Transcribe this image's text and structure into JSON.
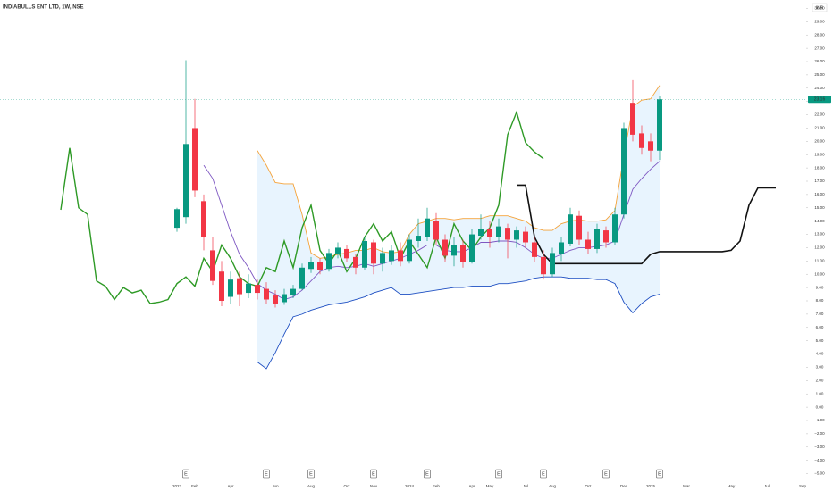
{
  "chart_data": {
    "type": "candlestick",
    "title": "INDIABULLS ENT LTD, 1W, NSE",
    "currency": "INR",
    "ylim": [
      -5.5,
      30.5
    ],
    "yticks": [
      {
        "value": 30,
        "label": "30.00"
      },
      {
        "value": 29,
        "label": "29.00"
      },
      {
        "value": 28,
        "label": "28.00"
      },
      {
        "value": 27,
        "label": "27.00"
      },
      {
        "value": 26,
        "label": "26.00"
      },
      {
        "value": 25,
        "label": "25.00"
      },
      {
        "value": 24,
        "label": "24.00"
      },
      {
        "value": 23,
        "label": "23.00"
      },
      {
        "value": 22,
        "label": "22.00"
      },
      {
        "value": 21,
        "label": "21.00"
      },
      {
        "value": 20,
        "label": "20.00"
      },
      {
        "value": 19,
        "label": "19.00"
      },
      {
        "value": 18,
        "label": "18.00"
      },
      {
        "value": 17,
        "label": "17.00"
      },
      {
        "value": 16,
        "label": "16.00"
      },
      {
        "value": 15,
        "label": "15.00"
      },
      {
        "value": 14,
        "label": "14.00"
      },
      {
        "value": 13,
        "label": "13.00"
      },
      {
        "value": 12,
        "label": "12.00"
      },
      {
        "value": 11,
        "label": "11.00"
      },
      {
        "value": 10,
        "label": "10.00"
      },
      {
        "value": 9,
        "label": "9.00"
      },
      {
        "value": 8,
        "label": "8.00"
      },
      {
        "value": 7,
        "label": "7.00"
      },
      {
        "value": 6,
        "label": "6.00"
      },
      {
        "value": 5,
        "label": "5.00"
      },
      {
        "value": 4,
        "label": "4.00"
      },
      {
        "value": 3,
        "label": "3.00"
      },
      {
        "value": 2,
        "label": "2.00"
      },
      {
        "value": 1,
        "label": "1.00"
      },
      {
        "value": 0,
        "label": "0.00"
      },
      {
        "value": -1,
        "label": "−1.00"
      },
      {
        "value": -2,
        "label": "−2.00"
      },
      {
        "value": -3,
        "label": "−3.00"
      },
      {
        "value": -4,
        "label": "−4.00"
      },
      {
        "value": -5,
        "label": "−5.00"
      }
    ],
    "categories": [
      null,
      null,
      null,
      null,
      null,
      null,
      null,
      null,
      null,
      null,
      null,
      null,
      null,
      "2023",
      null,
      "Feb",
      null,
      null,
      null,
      "Apr",
      null,
      null,
      null,
      null,
      "Jun",
      null,
      null,
      null,
      "Aug",
      null,
      null,
      null,
      "Oct",
      null,
      null,
      "Nov",
      null,
      null,
      null,
      "2024",
      null,
      null,
      "Feb",
      null,
      null,
      null,
      "Apr",
      null,
      "May",
      null,
      null,
      null,
      "Jul",
      null,
      null,
      "Aug",
      null,
      null,
      null,
      "Oct",
      null,
      null,
      null,
      "Dec",
      null,
      null,
      "2025",
      null,
      null,
      null,
      "Mar",
      null,
      null,
      null,
      null,
      "May",
      null,
      null,
      null,
      "Jul",
      null,
      null,
      null,
      "Sep"
    ],
    "earnings": [
      null,
      null,
      null,
      null,
      null,
      null,
      null,
      null,
      null,
      null,
      null,
      null,
      null,
      null,
      "E",
      null,
      null,
      null,
      null,
      null,
      null,
      null,
      null,
      "E",
      null,
      null,
      null,
      null,
      "E",
      null,
      null,
      null,
      null,
      null,
      null,
      "E",
      null,
      null,
      null,
      null,
      null,
      "E",
      null,
      null,
      null,
      null,
      null,
      null,
      null,
      "E",
      null,
      null,
      null,
      null,
      "E",
      null,
      null,
      null,
      null,
      null,
      null,
      "E",
      null,
      null,
      null,
      null,
      null,
      "E",
      null,
      null,
      null,
      null,
      null,
      null,
      null,
      null,
      null,
      null,
      null,
      null,
      null,
      null,
      null,
      null
    ],
    "candles": {
      "up_color": "#089981",
      "down_color": "#f23645",
      "open": [
        null,
        null,
        null,
        null,
        null,
        null,
        null,
        null,
        null,
        null,
        null,
        null,
        null,
        13.5,
        14.3,
        21.0,
        15.5,
        11.8,
        10.2,
        8.3,
        9.7,
        8.6,
        9.2,
        8.9,
        8.4,
        7.9,
        8.4,
        8.9,
        10.4,
        10.9,
        10.4,
        11.5,
        11.9,
        11.3,
        10.5,
        12.4,
        10.8,
        11.0,
        11.8,
        11.0,
        12.5,
        12.8,
        14.0,
        12.6,
        11.4,
        12.2,
        10.9,
        12.9,
        13.4,
        12.8,
        13.5,
        12.6,
        13.2,
        12.4,
        11.3,
        10.0,
        11.5,
        12.3,
        14.4,
        12.6,
        11.9,
        13.3,
        12.4,
        14.5,
        22.9,
        20.6,
        20.0,
        19.3,
        null,
        null,
        null,
        null,
        null,
        null,
        null,
        null,
        null,
        null,
        null,
        null,
        null,
        null,
        null,
        null
      ],
      "high": [
        null,
        null,
        null,
        null,
        null,
        null,
        null,
        null,
        null,
        null,
        null,
        null,
        null,
        15.0,
        26.1,
        23.2,
        16.0,
        12.8,
        11.0,
        10.2,
        10.2,
        10.0,
        9.6,
        9.4,
        8.8,
        8.9,
        9.2,
        10.8,
        11.3,
        11.2,
        11.9,
        12.4,
        12.2,
        11.5,
        12.8,
        12.6,
        12.0,
        12.2,
        12.4,
        13.0,
        14.2,
        15.0,
        14.6,
        13.0,
        12.8,
        12.6,
        13.4,
        14.5,
        14.0,
        14.2,
        13.8,
        13.6,
        13.6,
        12.8,
        11.8,
        12.0,
        12.8,
        15.0,
        14.8,
        13.2,
        13.8,
        13.6,
        15.0,
        21.4,
        24.6,
        21.2,
        20.6,
        23.4,
        null,
        null,
        null,
        null,
        null,
        null,
        null,
        null,
        null,
        null,
        null,
        null,
        null,
        null,
        null,
        null
      ],
      "low": [
        null,
        null,
        null,
        null,
        null,
        null,
        null,
        null,
        null,
        null,
        null,
        null,
        null,
        13.2,
        13.8,
        15.8,
        11.8,
        9.2,
        7.6,
        7.8,
        7.6,
        8.2,
        8.1,
        7.8,
        7.5,
        7.7,
        8.2,
        8.8,
        10.1,
        10.0,
        10.2,
        11.2,
        10.9,
        10.0,
        10.3,
        10.0,
        10.2,
        10.7,
        10.6,
        10.8,
        12.0,
        12.5,
        12.2,
        10.9,
        10.6,
        10.5,
        10.8,
        12.6,
        12.0,
        12.4,
        11.2,
        12.0,
        12.0,
        10.9,
        9.6,
        9.8,
        11.0,
        12.1,
        12.2,
        11.5,
        11.6,
        12.0,
        12.2,
        14.2,
        20.0,
        19.0,
        18.5,
        18.6,
        null,
        null,
        null,
        null,
        null,
        null,
        null,
        null,
        null,
        null,
        null,
        null,
        null,
        null,
        null,
        null
      ],
      "close": [
        null,
        null,
        null,
        null,
        null,
        null,
        null,
        null,
        null,
        null,
        null,
        null,
        null,
        14.9,
        19.8,
        16.3,
        12.8,
        9.5,
        8.0,
        9.6,
        8.5,
        9.3,
        8.6,
        8.1,
        7.8,
        8.5,
        8.9,
        10.5,
        10.9,
        10.3,
        11.6,
        12.0,
        11.2,
        10.5,
        12.5,
        10.8,
        11.6,
        11.8,
        11.0,
        12.6,
        12.9,
        14.2,
        12.6,
        11.4,
        12.2,
        10.9,
        13.0,
        13.4,
        12.8,
        13.6,
        12.6,
        13.3,
        12.4,
        11.3,
        10.0,
        11.6,
        12.4,
        14.5,
        12.6,
        11.9,
        13.4,
        12.4,
        14.5,
        21.0,
        20.5,
        19.5,
        19.3,
        23.16,
        null,
        null,
        null,
        null,
        null,
        null,
        null,
        null,
        null,
        null,
        null,
        null,
        null,
        null,
        null,
        null
      ]
    },
    "band_fill": "rgba(33,150,243,0.10)",
    "lines": [
      {
        "color": "#f5a33a",
        "values": [
          null,
          null,
          null,
          null,
          null,
          null,
          null,
          null,
          null,
          null,
          null,
          null,
          null,
          null,
          null,
          null,
          null,
          null,
          null,
          null,
          null,
          null,
          19.3,
          18.2,
          16.9,
          16.8,
          16.8,
          14.5,
          11.6,
          11.2,
          11.3,
          11.5,
          11.6,
          11.8,
          11.8,
          12.0,
          11.7,
          11.6,
          11.7,
          13.0,
          13.8,
          14.0,
          14.2,
          14.2,
          14.1,
          14.2,
          14.2,
          14.2,
          14.4,
          14.4,
          14.4,
          14.2,
          14.0,
          13.5,
          13.3,
          13.3,
          13.8,
          14.0,
          14.1,
          14.0,
          14.0,
          14.1,
          14.8,
          18.9,
          22.6,
          23.1,
          23.2,
          24.2,
          null,
          null,
          null,
          null,
          null,
          null,
          null,
          null,
          null,
          null,
          null,
          null,
          null,
          null,
          null,
          null
        ]
      },
      {
        "color": "#1e4fc2",
        "values": [
          null,
          null,
          null,
          null,
          null,
          null,
          null,
          null,
          null,
          null,
          null,
          null,
          null,
          null,
          null,
          null,
          null,
          null,
          null,
          null,
          null,
          null,
          3.4,
          2.9,
          4.1,
          5.5,
          6.8,
          7.0,
          7.3,
          7.5,
          7.7,
          7.8,
          7.9,
          8.1,
          8.3,
          8.6,
          8.8,
          9.0,
          8.5,
          8.5,
          8.6,
          8.7,
          8.8,
          8.9,
          9.0,
          9.0,
          9.1,
          9.1,
          9.1,
          9.3,
          9.3,
          9.4,
          9.5,
          9.7,
          9.8,
          9.8,
          9.8,
          9.7,
          9.7,
          9.7,
          9.6,
          9.6,
          9.3,
          7.9,
          7.1,
          7.8,
          8.3,
          8.5,
          null,
          null,
          null,
          null,
          null,
          null,
          null,
          null,
          null,
          null,
          null,
          null,
          null,
          null,
          null,
          null
        ]
      },
      {
        "color": "#7e57c2",
        "values": [
          null,
          null,
          null,
          null,
          null,
          null,
          null,
          null,
          null,
          null,
          null,
          null,
          null,
          null,
          null,
          null,
          18.2,
          17.2,
          15.2,
          13.2,
          11.5,
          10.5,
          9.3,
          8.8,
          8.5,
          8.1,
          8.3,
          8.8,
          9.5,
          10.2,
          10.5,
          10.6,
          10.5,
          10.6,
          10.8,
          10.6,
          10.8,
          11.0,
          11.2,
          11.5,
          11.8,
          12.2,
          12.2,
          11.8,
          11.7,
          11.7,
          12.0,
          12.4,
          12.4,
          12.5,
          12.5,
          12.4,
          12.0,
          11.5,
          11.2,
          11.2,
          11.5,
          11.8,
          12.0,
          12.0,
          12.1,
          12.2,
          12.5,
          14.5,
          16.4,
          17.2,
          17.9,
          18.5,
          null,
          null,
          null,
          null,
          null,
          null,
          null,
          null,
          null,
          null,
          null,
          null,
          null,
          null,
          null,
          null
        ]
      },
      {
        "color": "#2e9a26",
        "values": [
          14.85,
          19.5,
          15.0,
          14.5,
          9.5,
          9.1,
          8.1,
          9.0,
          8.6,
          8.8,
          7.8,
          7.9,
          8.1,
          9.3,
          9.8,
          9.1,
          11.2,
          10.2,
          12.2,
          11.2,
          9.8,
          9.3,
          9.1,
          10.5,
          10.2,
          12.5,
          10.5,
          13.5,
          15.2,
          11.8,
          10.8,
          11.8,
          10.2,
          11.2,
          12.8,
          13.8,
          12.5,
          13.2,
          11.2,
          12.5,
          11.5,
          10.5,
          12.8,
          11.2,
          13.8,
          12.5,
          11.8,
          12.8,
          13.5,
          15.2,
          20.5,
          22.2,
          19.9,
          19.2,
          18.7,
          null,
          null,
          null,
          null,
          null,
          null,
          null,
          null,
          null,
          null,
          null,
          null,
          null,
          null,
          null,
          null,
          null,
          null,
          null,
          null,
          null,
          null,
          null,
          null,
          null,
          null,
          null,
          null,
          null
        ]
      },
      {
        "color": "#111111",
        "values": [
          null,
          null,
          null,
          null,
          null,
          null,
          null,
          null,
          null,
          null,
          null,
          null,
          null,
          null,
          null,
          null,
          null,
          null,
          null,
          null,
          null,
          null,
          null,
          null,
          null,
          null,
          null,
          null,
          null,
          null,
          null,
          null,
          null,
          null,
          null,
          null,
          null,
          null,
          null,
          null,
          null,
          null,
          null,
          null,
          null,
          null,
          null,
          null,
          null,
          null,
          null,
          16.7,
          16.7,
          12.8,
          11.5,
          10.8,
          10.8,
          10.8,
          10.8,
          10.8,
          10.8,
          10.8,
          10.8,
          10.8,
          10.8,
          10.8,
          11.5,
          11.7,
          11.7,
          11.7,
          11.7,
          11.7,
          11.7,
          11.7,
          11.7,
          11.8,
          12.5,
          15.2,
          16.5,
          16.5,
          16.5,
          null,
          null,
          null
        ]
      }
    ]
  }
}
